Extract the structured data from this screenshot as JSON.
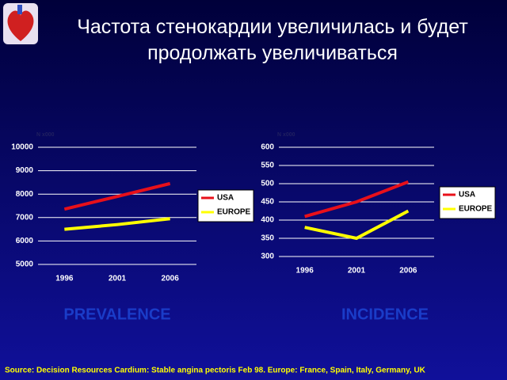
{
  "title": "Частота стенокардии увеличилась и будет продолжать увеличиваться",
  "source": "Source: Decision Resources Cardium: Stable angina pectoris Feb 98. Europe: France, Spain, Italy, Germany, UK",
  "chart_data": [
    {
      "type": "line",
      "title": "PREVALENCE",
      "y_label": "N x000",
      "categories": [
        "1996",
        "2001",
        "2006"
      ],
      "series": [
        {
          "name": "USA",
          "color": "#e8101a",
          "values": [
            7360,
            7900,
            8450
          ]
        },
        {
          "name": "EUROPE",
          "color": "#ffff00",
          "values": [
            6500,
            6700,
            6950
          ]
        }
      ],
      "ylim": [
        5000,
        10000
      ],
      "yticks": [
        5000,
        6000,
        7000,
        8000,
        9000,
        10000
      ],
      "grid": true
    },
    {
      "type": "line",
      "title": "INCIDENCE",
      "y_label": "N x000",
      "categories": [
        "1996",
        "2001",
        "2006"
      ],
      "series": [
        {
          "name": "USA",
          "color": "#e8101a",
          "values": [
            410,
            450,
            505
          ]
        },
        {
          "name": "EUROPE",
          "color": "#ffff00",
          "values": [
            380,
            350,
            425
          ]
        }
      ],
      "ylim": [
        300,
        600
      ],
      "yticks": [
        300,
        350,
        400,
        450,
        500,
        550,
        600
      ],
      "grid": true
    }
  ]
}
